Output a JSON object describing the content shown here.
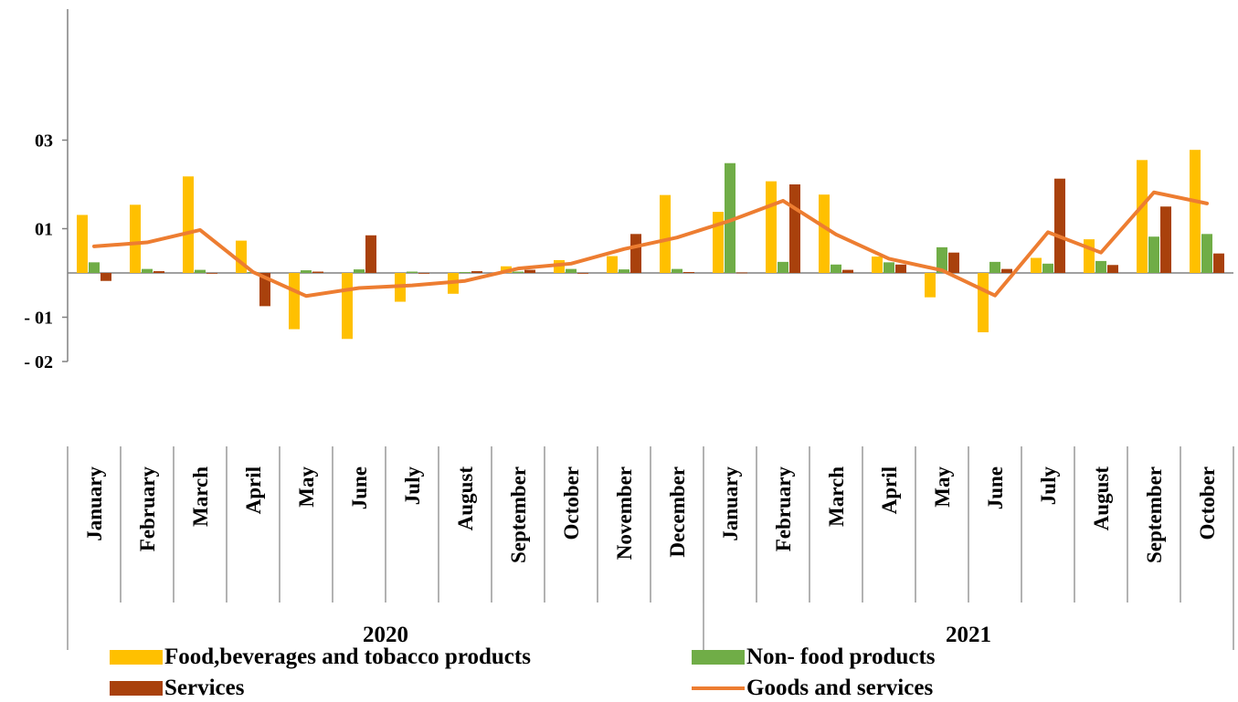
{
  "chart_data": {
    "type": "bar",
    "title": "",
    "xlabel": "",
    "ylabel": "",
    "ylim": [
      -20,
      35
    ],
    "y_ticks": [
      {
        "value": 30,
        "label": "03"
      },
      {
        "value": 10,
        "label": "01"
      },
      {
        "value": -10,
        "label": "- 01"
      },
      {
        "value": -20,
        "label": "- 02"
      }
    ],
    "categories": [
      "January",
      "February",
      "March",
      "April",
      "May",
      "June",
      "July",
      "August",
      "September",
      "October",
      "November",
      "December",
      "January",
      "February",
      "March",
      "April",
      "May",
      "June",
      "July",
      "August",
      "September",
      "October"
    ],
    "groups": [
      {
        "label": "2020",
        "count": 12
      },
      {
        "label": "2021",
        "count": 10
      }
    ],
    "series": [
      {
        "name": "Food,beverages and tobacco products",
        "kind": "bar",
        "color": "#FFC000",
        "values": [
          13.1,
          15.4,
          21.8,
          7.3,
          -12.7,
          -14.9,
          -6.5,
          -4.7,
          1.5,
          2.9,
          3.8,
          17.6,
          13.8,
          20.7,
          17.7,
          3.7,
          -5.5,
          -13.4,
          3.4,
          7.6,
          25.5,
          27.8
        ]
      },
      {
        "name": "Non- food products",
        "kind": "bar",
        "color": "#70AD47",
        "values": [
          2.4,
          0.9,
          0.7,
          0.2,
          0.6,
          0.8,
          0.3,
          0.2,
          0.3,
          0.9,
          0.8,
          0.9,
          24.8,
          2.5,
          1.9,
          2.4,
          5.8,
          2.5,
          2.1,
          2.7,
          8.2,
          8.8
        ]
      },
      {
        "name": "Services",
        "kind": "bar",
        "color": "#A9410C",
        "values": [
          -1.8,
          0.4,
          0,
          -7.5,
          0.3,
          8.5,
          0,
          0.4,
          0.7,
          0,
          8.8,
          0.2,
          0.1,
          20.0,
          0.7,
          1.9,
          4.6,
          0.9,
          21.3,
          1.8,
          15.0,
          4.4
        ]
      },
      {
        "name": "Goods and services",
        "kind": "line",
        "color": "#ED7D31",
        "values": [
          6.0,
          6.9,
          9.7,
          0.2,
          -5.2,
          -3.4,
          -2.8,
          -1.8,
          1.0,
          2.1,
          5.4,
          8.0,
          11.8,
          16.3,
          8.7,
          3.2,
          0.6,
          -5.1,
          9.2,
          4.6,
          18.2,
          15.7
        ]
      }
    ],
    "grid": false,
    "legend_position": "bottom"
  }
}
